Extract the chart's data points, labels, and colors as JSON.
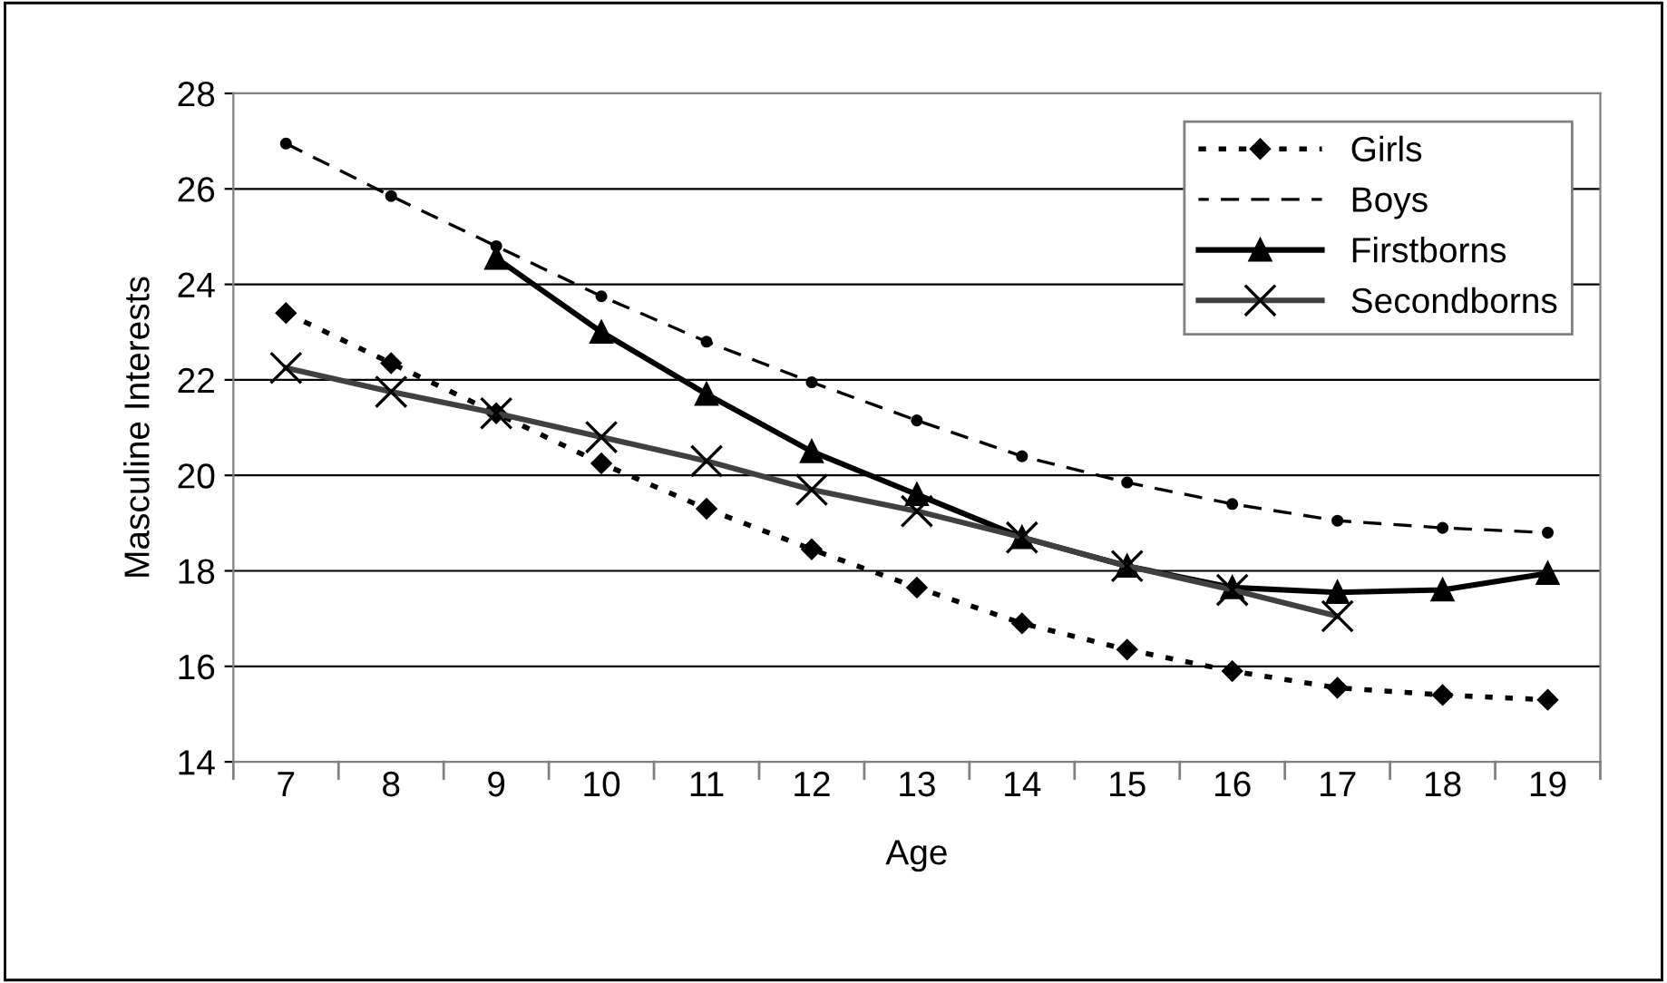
{
  "chart_data": {
    "type": "line",
    "xlabel": "Age",
    "ylabel": "Masculine Interests",
    "categories": [
      "7",
      "8",
      "9",
      "10",
      "11",
      "12",
      "13",
      "14",
      "15",
      "16",
      "17",
      "18",
      "19"
    ],
    "series": [
      {
        "name": "Girls",
        "color": "#000000",
        "marker": "diamond",
        "line_style": "dotted",
        "values": [
          23.4,
          22.35,
          21.3,
          20.25,
          19.3,
          18.45,
          17.65,
          16.9,
          16.35,
          15.9,
          15.55,
          15.4,
          15.3
        ]
      },
      {
        "name": "Boys",
        "color": "#000000",
        "marker": "circle",
        "line_style": "dashed",
        "values": [
          26.95,
          25.85,
          24.8,
          23.75,
          22.8,
          21.95,
          21.15,
          20.4,
          19.85,
          19.4,
          19.05,
          18.9,
          18.8
        ]
      },
      {
        "name": "Firstborns",
        "color": "#000000",
        "marker": "triangle",
        "line_style": "solid",
        "values": [
          null,
          null,
          24.55,
          23.0,
          21.7,
          20.5,
          19.6,
          18.7,
          18.1,
          17.65,
          17.55,
          17.6,
          17.95
        ]
      },
      {
        "name": "Secondborns",
        "color": "#404040",
        "marker": "cross",
        "line_style": "solid",
        "values": [
          22.25,
          21.75,
          21.3,
          20.8,
          20.3,
          19.7,
          19.25,
          18.7,
          18.1,
          17.6,
          17.05,
          null,
          null
        ]
      }
    ],
    "ylim": [
      14,
      28
    ],
    "yticks": [
      14,
      16,
      18,
      20,
      22,
      24,
      26,
      28
    ],
    "grid": "y",
    "legend": "top right"
  }
}
